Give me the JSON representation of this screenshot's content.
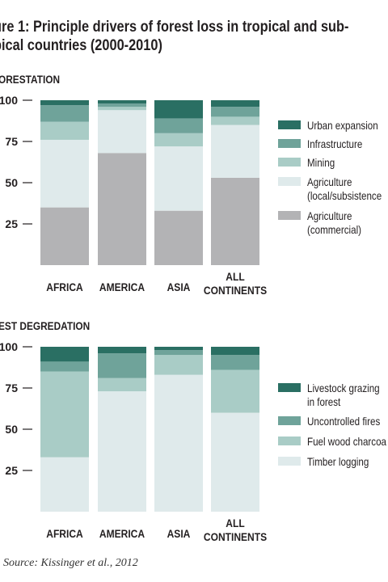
{
  "figure": {
    "title_line1": "ure 1: Principle drivers of forest loss in tropical and sub-",
    "title_line2": "pical countries (2000-2010)",
    "source": "Source: Kissinger et al., 2012"
  },
  "colors": {
    "dark_teal": "#2a6f63",
    "mid_teal": "#6fa39a",
    "light_teal": "#a9ccc6",
    "pale": "#dfeaeb",
    "grey": "#b3b3b5",
    "axis": "#231f20"
  },
  "chart_data": [
    {
      "type": "bar",
      "stacked": true,
      "title": "ORESTATION",
      "categories": [
        "AFRICA",
        "AMERICA",
        "ASIA",
        "ALL CONTINENTS"
      ],
      "ylim": [
        0,
        100
      ],
      "yticks": [
        25,
        50,
        75,
        100
      ],
      "ytick_labels": [
        "25",
        "50",
        "75",
        "100"
      ],
      "legend_position": "right",
      "series": [
        {
          "name": "Agriculture (commercial)",
          "color": "grey",
          "values": [
            35,
            68,
            33,
            53
          ]
        },
        {
          "name": "Agriculture (local/subsistence)",
          "color": "pale",
          "values": [
            41,
            26,
            39,
            32
          ]
        },
        {
          "name": "Mining",
          "color": "light_teal",
          "values": [
            11,
            2,
            8,
            5
          ]
        },
        {
          "name": "Infrastructure",
          "color": "mid_teal",
          "values": [
            10,
            2,
            9,
            6
          ]
        },
        {
          "name": "Urban expansion",
          "color": "dark_teal",
          "values": [
            3,
            2,
            11,
            4
          ]
        }
      ],
      "legend_labels": [
        [
          "Urban expansion"
        ],
        [
          "Infrastructure"
        ],
        [
          "Mining"
        ],
        [
          "Agriculture",
          "(local/subsistence"
        ],
        [
          "Agriculture",
          "(commercial)"
        ]
      ],
      "legend_colors": [
        "dark_teal",
        "mid_teal",
        "light_teal",
        "pale",
        "grey"
      ]
    },
    {
      "type": "bar",
      "stacked": true,
      "title": "EST DEGREDATION",
      "categories": [
        "AFRICA",
        "AMERICA",
        "ASIA",
        "ALL CONTINENTS"
      ],
      "ylim": [
        0,
        100
      ],
      "yticks": [
        25,
        50,
        75,
        100
      ],
      "ytick_labels": [
        "25",
        "50",
        "75",
        "100"
      ],
      "legend_position": "right",
      "series": [
        {
          "name": "Timber logging",
          "color": "pale",
          "values": [
            33,
            73,
            83,
            60
          ]
        },
        {
          "name": "Fuel wood charcoal",
          "color": "light_teal",
          "values": [
            52,
            8,
            12,
            26
          ]
        },
        {
          "name": "Uncontrolled fires",
          "color": "mid_teal",
          "values": [
            6,
            15,
            3,
            9
          ]
        },
        {
          "name": "Livestock grazing in forest",
          "color": "dark_teal",
          "values": [
            9,
            4,
            2,
            5
          ]
        }
      ],
      "legend_labels": [
        [
          "Livestock grazing",
          "in forest"
        ],
        [
          "Uncontrolled fires"
        ],
        [
          "Fuel wood charcoa"
        ],
        [
          "Timber logging"
        ]
      ],
      "legend_colors": [
        "dark_teal",
        "mid_teal",
        "light_teal",
        "pale"
      ]
    }
  ]
}
